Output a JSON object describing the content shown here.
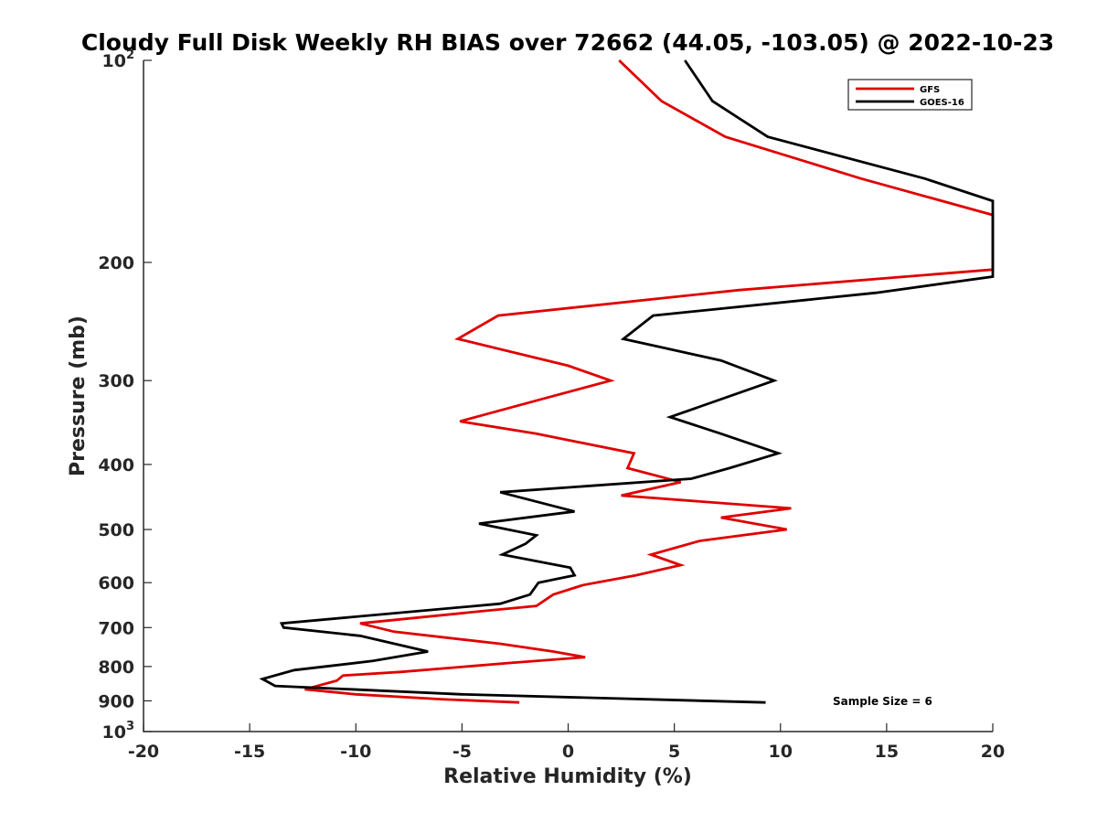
{
  "chart_data": {
    "type": "line",
    "title": "Cloudy Full Disk Weekly RH BIAS over 72662 (44.05, -103.05) @ 2022-10-23",
    "xlabel": "Relative Humidity (%)",
    "ylabel": "Pressure (mb)",
    "xlim": [
      -20,
      20
    ],
    "ylim": [
      100,
      1000
    ],
    "y_scale": "log",
    "y_reversed": true,
    "grid": false,
    "x_ticks": [
      -20,
      -15,
      -10,
      -5,
      0,
      5,
      10,
      15,
      20
    ],
    "x_tick_labels": [
      "-20",
      "-15",
      "-10",
      "-5",
      "0",
      "5",
      "10",
      "15",
      "20"
    ],
    "y_ticks": [
      {
        "value": 100,
        "base": "10",
        "exp": "2"
      },
      {
        "value": 200,
        "label": "200"
      },
      {
        "value": 300,
        "label": "300"
      },
      {
        "value": 400,
        "label": "400"
      },
      {
        "value": 500,
        "label": "500"
      },
      {
        "value": 600,
        "label": "600"
      },
      {
        "value": 700,
        "label": "700"
      },
      {
        "value": 800,
        "label": "800"
      },
      {
        "value": 900,
        "label": "900"
      },
      {
        "value": 1000,
        "base": "10",
        "exp": "3"
      }
    ],
    "legend_position": "top-right",
    "annotation": "Sample Size = 6",
    "series": [
      {
        "name": "GFS",
        "color": "#e00000",
        "points": [
          {
            "x": 2.4,
            "p": 100
          },
          {
            "x": 4.4,
            "p": 115
          },
          {
            "x": 7.4,
            "p": 130
          },
          {
            "x": 13.8,
            "p": 150
          },
          {
            "x": 20.0,
            "p": 170
          },
          {
            "x": 20.0,
            "p": 205
          },
          {
            "x": 8.0,
            "p": 220
          },
          {
            "x": -3.3,
            "p": 240
          },
          {
            "x": -5.2,
            "p": 260
          },
          {
            "x": 0.0,
            "p": 285
          },
          {
            "x": 2.0,
            "p": 300
          },
          {
            "x": -1.3,
            "p": 320
          },
          {
            "x": -5.1,
            "p": 345
          },
          {
            "x": -1.5,
            "p": 360
          },
          {
            "x": 3.1,
            "p": 385
          },
          {
            "x": 2.8,
            "p": 405
          },
          {
            "x": 5.3,
            "p": 425
          },
          {
            "x": 2.5,
            "p": 445
          },
          {
            "x": 10.5,
            "p": 465
          },
          {
            "x": 7.2,
            "p": 480
          },
          {
            "x": 10.3,
            "p": 500
          },
          {
            "x": 6.2,
            "p": 520
          },
          {
            "x": 3.9,
            "p": 545
          },
          {
            "x": 5.3,
            "p": 565
          },
          {
            "x": 3.2,
            "p": 585
          },
          {
            "x": 0.7,
            "p": 605
          },
          {
            "x": -0.7,
            "p": 625
          },
          {
            "x": -1.5,
            "p": 650
          },
          {
            "x": -3.7,
            "p": 660
          },
          {
            "x": -9.8,
            "p": 690
          },
          {
            "x": -8.2,
            "p": 710
          },
          {
            "x": -3.2,
            "p": 740
          },
          {
            "x": -0.7,
            "p": 760
          },
          {
            "x": 0.8,
            "p": 775
          },
          {
            "x": -2.7,
            "p": 790
          },
          {
            "x": -7.9,
            "p": 815
          },
          {
            "x": -10.6,
            "p": 825
          },
          {
            "x": -10.9,
            "p": 840
          },
          {
            "x": -12.4,
            "p": 865
          },
          {
            "x": -10.0,
            "p": 880
          },
          {
            "x": -6.0,
            "p": 895
          },
          {
            "x": -2.3,
            "p": 905
          }
        ]
      },
      {
        "name": "GOES-16",
        "color": "#000000",
        "points": [
          {
            "x": 5.5,
            "p": 100
          },
          {
            "x": 6.8,
            "p": 115
          },
          {
            "x": 9.4,
            "p": 130
          },
          {
            "x": 16.8,
            "p": 150
          },
          {
            "x": 20.0,
            "p": 162
          },
          {
            "x": 20.0,
            "p": 210
          },
          {
            "x": 14.5,
            "p": 222
          },
          {
            "x": 4.0,
            "p": 240
          },
          {
            "x": 2.6,
            "p": 260
          },
          {
            "x": 7.2,
            "p": 280
          },
          {
            "x": 9.7,
            "p": 300
          },
          {
            "x": 4.8,
            "p": 340
          },
          {
            "x": 7.2,
            "p": 360
          },
          {
            "x": 9.9,
            "p": 385
          },
          {
            "x": 7.6,
            "p": 405
          },
          {
            "x": 5.8,
            "p": 420
          },
          {
            "x": -3.2,
            "p": 440
          },
          {
            "x": 0.3,
            "p": 470
          },
          {
            "x": -4.2,
            "p": 490
          },
          {
            "x": -1.5,
            "p": 510
          },
          {
            "x": -2.0,
            "p": 525
          },
          {
            "x": -3.1,
            "p": 545
          },
          {
            "x": 0.1,
            "p": 570
          },
          {
            "x": 0.3,
            "p": 585
          },
          {
            "x": -1.4,
            "p": 600
          },
          {
            "x": -1.8,
            "p": 625
          },
          {
            "x": -3.2,
            "p": 645
          },
          {
            "x": -13.5,
            "p": 690
          },
          {
            "x": -13.4,
            "p": 700
          },
          {
            "x": -9.8,
            "p": 720
          },
          {
            "x": -6.6,
            "p": 760
          },
          {
            "x": -9.2,
            "p": 785
          },
          {
            "x": -12.9,
            "p": 810
          },
          {
            "x": -14.4,
            "p": 835
          },
          {
            "x": -13.8,
            "p": 855
          },
          {
            "x": -5.0,
            "p": 880
          },
          {
            "x": 9.3,
            "p": 905
          }
        ]
      }
    ]
  }
}
